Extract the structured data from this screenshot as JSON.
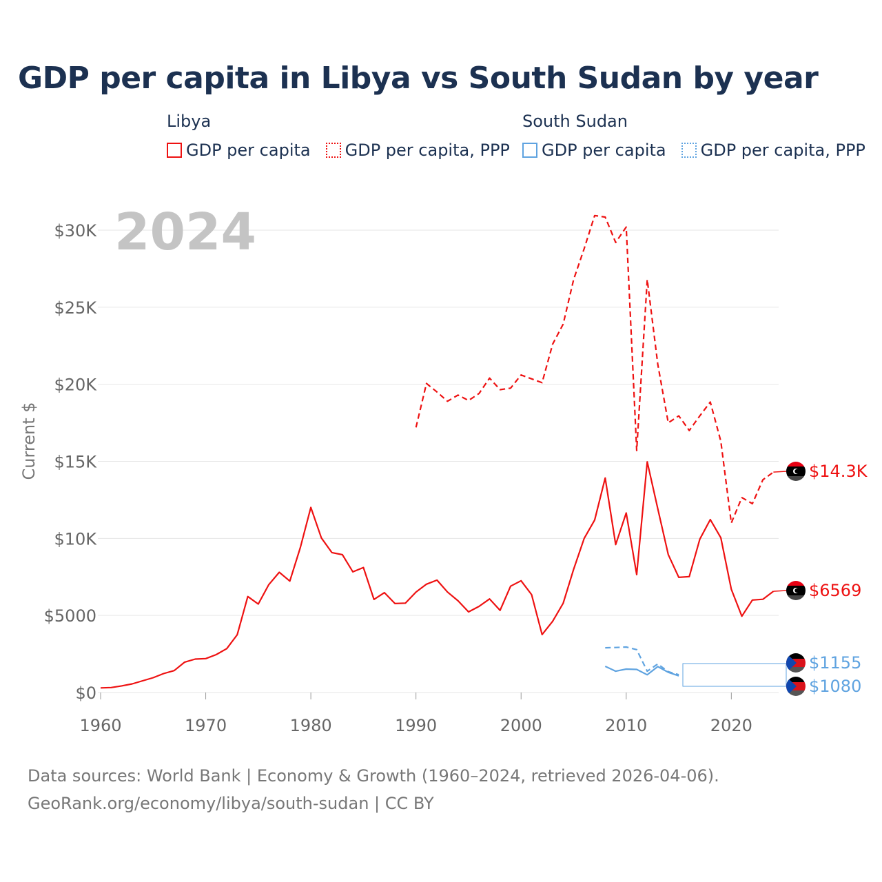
{
  "title": "GDP per capita in Libya vs South Sudan by year",
  "legend": {
    "groups": [
      {
        "name": "Libya",
        "color": "#ee1111",
        "items": [
          {
            "label": "GDP per capita",
            "style": "solid"
          },
          {
            "label": "GDP per capita, PPP",
            "style": "dotted"
          }
        ]
      },
      {
        "name": "South Sudan",
        "color": "#5fa3e0",
        "items": [
          {
            "label": "GDP per capita",
            "style": "solid"
          },
          {
            "label": "GDP per capita, PPP",
            "style": "dotted"
          }
        ]
      }
    ]
  },
  "chart_data": {
    "type": "line",
    "title": "GDP per capita in Libya vs South Sudan by year",
    "ylabel": "Current $",
    "xlabel": "",
    "year_label": "2024",
    "xlim": [
      1960,
      2024.5
    ],
    "ylim": [
      0,
      31000
    ],
    "grid": true,
    "x_ticks": [
      1960,
      1970,
      1980,
      1990,
      2000,
      2010,
      2020
    ],
    "y_ticks": [
      {
        "value": 0,
        "label": "$0"
      },
      {
        "value": 5000,
        "label": "$5000"
      },
      {
        "value": 10000,
        "label": "$10K"
      },
      {
        "value": 15000,
        "label": "$15K"
      },
      {
        "value": 20000,
        "label": "$20K"
      },
      {
        "value": 25000,
        "label": "$25K"
      },
      {
        "value": 30000,
        "label": "$30K"
      }
    ],
    "series": [
      {
        "name": "Libya GDP per capita",
        "country": "Libya",
        "color": "#ee1111",
        "dash": "solid",
        "end_label": "$6569",
        "x": [
          1960,
          1961,
          1962,
          1963,
          1964,
          1965,
          1966,
          1967,
          1968,
          1969,
          1970,
          1971,
          1972,
          1973,
          1974,
          1975,
          1976,
          1977,
          1978,
          1979,
          1980,
          1981,
          1982,
          1983,
          1984,
          1985,
          1986,
          1987,
          1988,
          1989,
          1990,
          1991,
          1992,
          1993,
          1994,
          1995,
          1996,
          1997,
          1998,
          1999,
          2000,
          2001,
          2002,
          2003,
          2004,
          2005,
          2006,
          2007,
          2008,
          2009,
          2010,
          2011,
          2012,
          2013,
          2014,
          2015,
          2016,
          2017,
          2018,
          2019,
          2020,
          2021,
          2022,
          2023,
          2024
        ],
        "values": [
          300,
          320,
          430,
          560,
          760,
          960,
          1230,
          1420,
          1970,
          2170,
          2200,
          2460,
          2850,
          3750,
          6230,
          5740,
          7000,
          7800,
          7230,
          9410,
          12010,
          10030,
          9080,
          8940,
          7830,
          8110,
          6040,
          6480,
          5770,
          5800,
          6520,
          7030,
          7290,
          6520,
          5950,
          5230,
          5590,
          6070,
          5330,
          6900,
          7250,
          6350,
          3760,
          4620,
          5790,
          8000,
          10000,
          11190,
          13920,
          9600,
          11650,
          7650,
          14970,
          11930,
          8950,
          7470,
          7520,
          9950,
          11220,
          10040,
          6700,
          4950,
          6000,
          6050,
          6569
        ]
      },
      {
        "name": "Libya GDP per capita, PPP",
        "country": "Libya",
        "color": "#ee1111",
        "dash": "dashed",
        "end_label": "$14.3K",
        "x": [
          1990,
          1991,
          1992,
          1993,
          1994,
          1995,
          1996,
          1997,
          1998,
          1999,
          2000,
          2001,
          2002,
          2003,
          2004,
          2005,
          2006,
          2007,
          2008,
          2009,
          2010,
          2011,
          2012,
          2013,
          2014,
          2015,
          2016,
          2017,
          2018,
          2019,
          2020,
          2021,
          2022,
          2023,
          2024
        ],
        "values": [
          17200,
          20050,
          19500,
          18900,
          19300,
          18950,
          19400,
          20400,
          19650,
          19750,
          20600,
          20350,
          20100,
          22600,
          23900,
          26800,
          28800,
          30950,
          30850,
          29200,
          30200,
          15700,
          26800,
          21300,
          17500,
          17950,
          17000,
          17950,
          18850,
          16300,
          11000,
          12650,
          12250,
          13800,
          14300
        ]
      },
      {
        "name": "South Sudan GDP per capita",
        "country": "South Sudan",
        "color": "#5fa3e0",
        "dash": "solid",
        "end_label": "$1080",
        "x": [
          2008,
          2009,
          2010,
          2011,
          2012,
          2013,
          2014,
          2015
        ],
        "values": [
          1700,
          1380,
          1520,
          1500,
          1150,
          1680,
          1310,
          1080
        ]
      },
      {
        "name": "South Sudan GDP per capita, PPP",
        "country": "South Sudan",
        "color": "#5fa3e0",
        "dash": "dashed",
        "end_label": "$1155",
        "x": [
          2008,
          2009,
          2010,
          2011,
          2012,
          2013,
          2014,
          2015
        ],
        "values": [
          2900,
          2920,
          2950,
          2780,
          1380,
          1850,
          1350,
          1155
        ]
      }
    ]
  },
  "source": {
    "line1": "Data sources: World Bank | Economy & Growth (1960–2024, retrieved 2026-04-06).",
    "line2": "GeoRank.org/economy/libya/south-sudan | CC BY"
  }
}
